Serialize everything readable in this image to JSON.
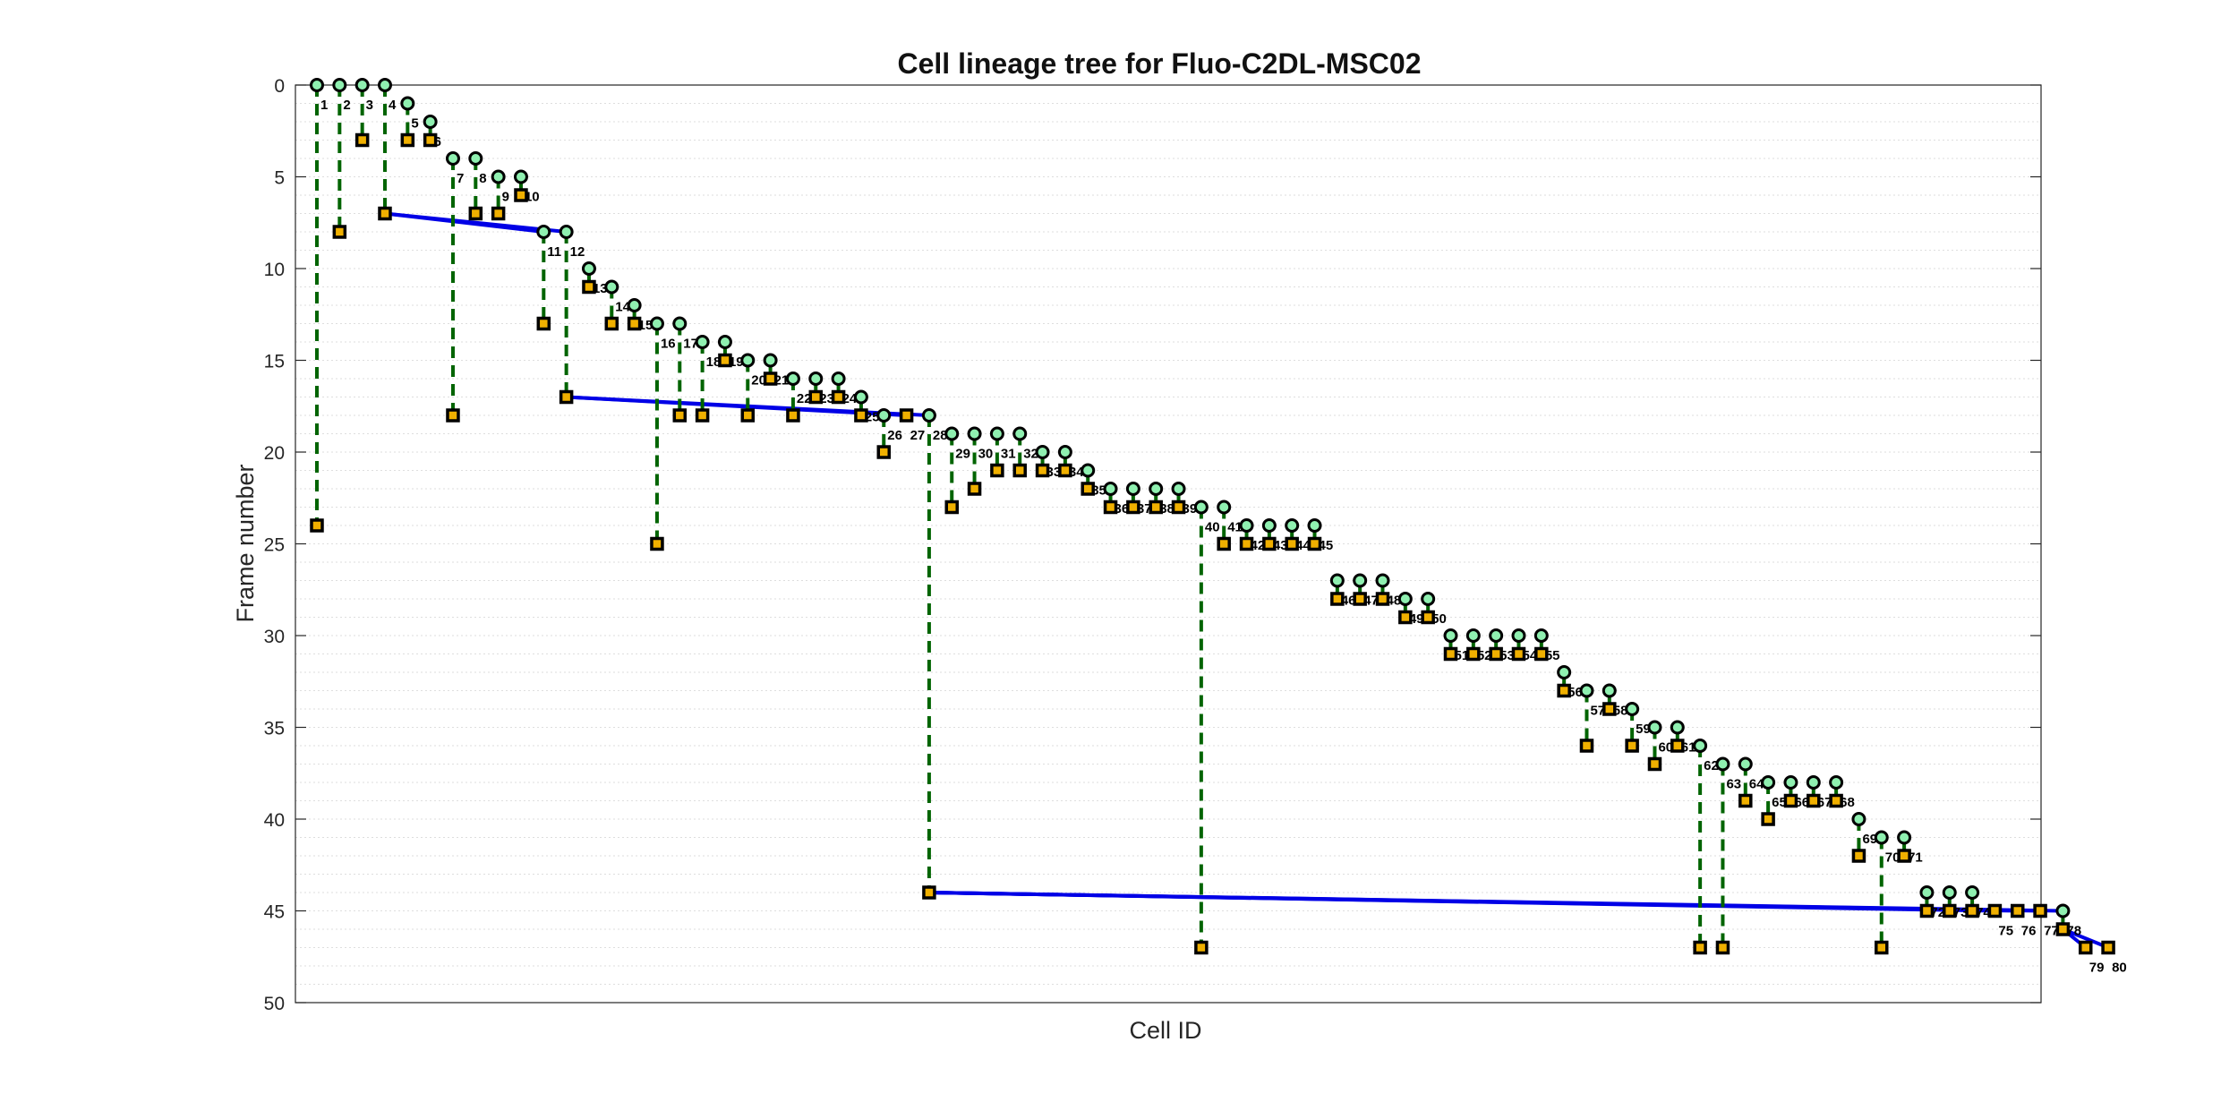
{
  "chart_data": {
    "type": "scatter",
    "title": "Cell lineage tree for Fluo-C2DL-MSC02",
    "xlabel": "Cell ID",
    "ylabel": "Frame number",
    "ylim": [
      0,
      50
    ],
    "y_reversed": true,
    "yticks": [
      0,
      5,
      10,
      15,
      20,
      25,
      30,
      35,
      40,
      45,
      50
    ],
    "grid": "horizontal-minor",
    "colors": {
      "track": "#006400",
      "division": "#0000e6",
      "start_marker": "#8ff0b0",
      "end_marker": "#f0b000"
    },
    "cells": [
      {
        "id": 1,
        "label": "1",
        "start": 0,
        "end": 24,
        "parent": 0
      },
      {
        "id": 2,
        "label": "2",
        "start": 0,
        "end": 8,
        "parent": 0
      },
      {
        "id": 3,
        "label": "3",
        "start": 0,
        "end": 3,
        "parent": 0
      },
      {
        "id": 4,
        "label": "4",
        "start": 0,
        "end": 7,
        "parent": 0
      },
      {
        "id": 5,
        "label": "5",
        "start": 1,
        "end": 3,
        "parent": 0
      },
      {
        "id": 6,
        "label": "6",
        "start": 2,
        "end": 3,
        "parent": 0
      },
      {
        "id": 7,
        "label": "7",
        "start": 4,
        "end": 18,
        "parent": 0
      },
      {
        "id": 8,
        "label": "8",
        "start": 4,
        "end": 7,
        "parent": 0
      },
      {
        "id": 9,
        "label": "9",
        "start": 5,
        "end": 7,
        "parent": 0
      },
      {
        "id": 10,
        "label": "10",
        "start": 5,
        "end": 6,
        "parent": 0
      },
      {
        "id": 11,
        "label": "11",
        "start": 8,
        "end": 13,
        "parent": 4
      },
      {
        "id": 12,
        "label": "12",
        "start": 8,
        "end": 17,
        "parent": 4
      },
      {
        "id": 13,
        "label": "13",
        "start": 10,
        "end": 11,
        "parent": 0
      },
      {
        "id": 14,
        "label": "14",
        "start": 11,
        "end": 13,
        "parent": 0
      },
      {
        "id": 15,
        "label": "15",
        "start": 12,
        "end": 13,
        "parent": 0
      },
      {
        "id": 16,
        "label": "16",
        "start": 13,
        "end": 25,
        "parent": 0
      },
      {
        "id": 17,
        "label": "17",
        "start": 13,
        "end": 18,
        "parent": 0
      },
      {
        "id": 18,
        "label": "18",
        "start": 14,
        "end": 18,
        "parent": 0
      },
      {
        "id": 19,
        "label": "19",
        "start": 14,
        "end": 15,
        "parent": 0
      },
      {
        "id": 20,
        "label": "20",
        "start": 15,
        "end": 18,
        "parent": 0
      },
      {
        "id": 21,
        "label": "21",
        "start": 15,
        "end": 16,
        "parent": 0
      },
      {
        "id": 22,
        "label": "22",
        "start": 16,
        "end": 18,
        "parent": 0
      },
      {
        "id": 23,
        "label": "23",
        "start": 16,
        "end": 17,
        "parent": 0
      },
      {
        "id": 24,
        "label": "24",
        "start": 16,
        "end": 17,
        "parent": 0
      },
      {
        "id": 25,
        "label": "25",
        "start": 17,
        "end": 18,
        "parent": 0
      },
      {
        "id": 26,
        "label": "26",
        "start": 18,
        "end": 20,
        "parent": 0
      },
      {
        "id": 27,
        "label": "27",
        "start": 18,
        "end": 18,
        "parent": 12
      },
      {
        "id": 28,
        "label": "28",
        "start": 18,
        "end": 44,
        "parent": 12
      },
      {
        "id": 29,
        "label": "29",
        "start": 19,
        "end": 23,
        "parent": 0
      },
      {
        "id": 30,
        "label": "30",
        "start": 19,
        "end": 22,
        "parent": 0
      },
      {
        "id": 31,
        "label": "31",
        "start": 19,
        "end": 21,
        "parent": 0
      },
      {
        "id": 32,
        "label": "32",
        "start": 19,
        "end": 21,
        "parent": 0
      },
      {
        "id": 33,
        "label": "33",
        "start": 20,
        "end": 21,
        "parent": 0
      },
      {
        "id": 34,
        "label": "34",
        "start": 20,
        "end": 21,
        "parent": 0
      },
      {
        "id": 35,
        "label": "35",
        "start": 21,
        "end": 22,
        "parent": 0
      },
      {
        "id": 36,
        "label": "36",
        "start": 22,
        "end": 23,
        "parent": 0
      },
      {
        "id": 37,
        "label": "37",
        "start": 22,
        "end": 23,
        "parent": 0
      },
      {
        "id": 38,
        "label": "38",
        "start": 22,
        "end": 23,
        "parent": 0
      },
      {
        "id": 39,
        "label": "39",
        "start": 22,
        "end": 23,
        "parent": 0
      },
      {
        "id": 40,
        "label": "40",
        "start": 23,
        "end": 47,
        "parent": 0
      },
      {
        "id": 41,
        "label": "41",
        "start": 23,
        "end": 25,
        "parent": 0
      },
      {
        "id": 42,
        "label": "42",
        "start": 24,
        "end": 25,
        "parent": 0
      },
      {
        "id": 43,
        "label": "43",
        "start": 24,
        "end": 25,
        "parent": 0
      },
      {
        "id": 44,
        "label": "44",
        "start": 24,
        "end": 25,
        "parent": 0
      },
      {
        "id": 45,
        "label": "45",
        "start": 24,
        "end": 25,
        "parent": 0
      },
      {
        "id": 46,
        "label": "46",
        "start": 27,
        "end": 28,
        "parent": 0
      },
      {
        "id": 47,
        "label": "47",
        "start": 27,
        "end": 28,
        "parent": 0
      },
      {
        "id": 48,
        "label": "48",
        "start": 27,
        "end": 28,
        "parent": 0
      },
      {
        "id": 49,
        "label": "49",
        "start": 28,
        "end": 29,
        "parent": 0
      },
      {
        "id": 50,
        "label": "50",
        "start": 28,
        "end": 29,
        "parent": 0
      },
      {
        "id": 51,
        "label": "51",
        "start": 30,
        "end": 31,
        "parent": 0
      },
      {
        "id": 52,
        "label": "52",
        "start": 30,
        "end": 31,
        "parent": 0
      },
      {
        "id": 53,
        "label": "53",
        "start": 30,
        "end": 31,
        "parent": 0
      },
      {
        "id": 54,
        "label": "54",
        "start": 30,
        "end": 31,
        "parent": 0
      },
      {
        "id": 55,
        "label": "55",
        "start": 30,
        "end": 31,
        "parent": 0
      },
      {
        "id": 56,
        "label": "56",
        "start": 32,
        "end": 33,
        "parent": 0
      },
      {
        "id": 57,
        "label": "57",
        "start": 33,
        "end": 36,
        "parent": 0
      },
      {
        "id": 58,
        "label": "58",
        "start": 33,
        "end": 34,
        "parent": 0
      },
      {
        "id": 59,
        "label": "59",
        "start": 34,
        "end": 36,
        "parent": 0
      },
      {
        "id": 60,
        "label": "60",
        "start": 35,
        "end": 37,
        "parent": 0
      },
      {
        "id": 61,
        "label": "61",
        "start": 35,
        "end": 36,
        "parent": 0
      },
      {
        "id": 62,
        "label": "62",
        "start": 36,
        "end": 47,
        "parent": 0
      },
      {
        "id": 63,
        "label": "63",
        "start": 37,
        "end": 47,
        "parent": 0
      },
      {
        "id": 64,
        "label": "64",
        "start": 37,
        "end": 39,
        "parent": 0
      },
      {
        "id": 65,
        "label": "65",
        "start": 38,
        "end": 40,
        "parent": 0
      },
      {
        "id": 66,
        "label": "66",
        "start": 38,
        "end": 39,
        "parent": 0
      },
      {
        "id": 67,
        "label": "67",
        "start": 38,
        "end": 39,
        "parent": 0
      },
      {
        "id": 68,
        "label": "68",
        "start": 38,
        "end": 39,
        "parent": 0
      },
      {
        "id": 69,
        "label": "69",
        "start": 40,
        "end": 42,
        "parent": 0
      },
      {
        "id": 70,
        "label": "70",
        "start": 41,
        "end": 47,
        "parent": 0
      },
      {
        "id": 71,
        "label": "71",
        "start": 41,
        "end": 42,
        "parent": 0
      },
      {
        "id": 72,
        "label": "72",
        "start": 44,
        "end": 45,
        "parent": 0
      },
      {
        "id": 73,
        "label": "73",
        "start": 44,
        "end": 45,
        "parent": 0
      },
      {
        "id": 74,
        "label": "74",
        "start": 44,
        "end": 45,
        "parent": 0
      },
      {
        "id": 75,
        "label": "75",
        "start": 45,
        "end": 45,
        "parent": 28
      },
      {
        "id": 76,
        "label": "76",
        "start": 45,
        "end": 45,
        "parent": 28
      },
      {
        "id": 77,
        "label": "77",
        "start": 45,
        "end": 45,
        "parent": 28
      },
      {
        "id": 78,
        "label": "78",
        "start": 45,
        "end": 46,
        "parent": 28
      },
      {
        "id": 79,
        "label": "79",
        "start": 47,
        "end": 47,
        "parent": 78
      },
      {
        "id": 80,
        "label": "80",
        "start": 47,
        "end": 47,
        "parent": 78
      }
    ]
  }
}
